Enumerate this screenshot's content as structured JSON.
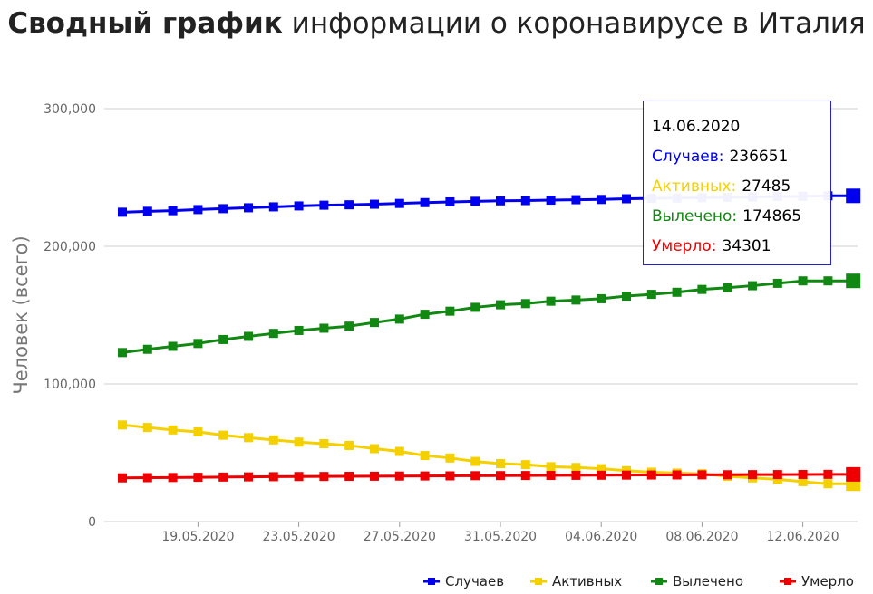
{
  "title": {
    "bold": "Сводный график",
    "rest": "информации о коронавирусе в Италия"
  },
  "chart_data": {
    "type": "line",
    "ylabel": "Человек (всего)",
    "ylim": [
      0,
      300000
    ],
    "yticks": [
      "0",
      "100,000",
      "200,000",
      "300,000"
    ],
    "ytick_values": [
      0,
      100000,
      200000,
      300000
    ],
    "x": [
      "16.05.2020",
      "17.05.2020",
      "18.05.2020",
      "19.05.2020",
      "20.05.2020",
      "21.05.2020",
      "22.05.2020",
      "23.05.2020",
      "24.05.2020",
      "25.05.2020",
      "26.05.2020",
      "27.05.2020",
      "28.05.2020",
      "29.05.2020",
      "30.05.2020",
      "31.05.2020",
      "01.06.2020",
      "02.06.2020",
      "03.06.2020",
      "04.06.2020",
      "05.06.2020",
      "06.06.2020",
      "07.06.2020",
      "08.06.2020",
      "09.06.2020",
      "10.06.2020",
      "11.06.2020",
      "12.06.2020",
      "13.06.2020",
      "14.06.2020"
    ],
    "xtick_labels": [
      "19.05.2020",
      "23.05.2020",
      "27.05.2020",
      "31.05.2020",
      "04.06.2020",
      "08.06.2020",
      "12.06.2020"
    ],
    "series": [
      {
        "name": "Случаев",
        "color": "#0000ee",
        "values": [
          224760,
          225435,
          225886,
          226699,
          227364,
          228006,
          228658,
          229327,
          229858,
          230158,
          230555,
          231139,
          231732,
          232248,
          232664,
          233019,
          233197,
          233515,
          233836,
          234013,
          234531,
          234801,
          234998,
          235278,
          235561,
          235763,
          236142,
          236305,
          236651,
          236651
        ]
      },
      {
        "name": "Активных",
        "color": "#f5d000",
        "values": [
          70187,
          68351,
          66553,
          65129,
          62752,
          60960,
          59322,
          57752,
          56594,
          55300,
          52942,
          50966,
          47986,
          46175,
          43691,
          42075,
          41367,
          39893,
          39297,
          38429,
          36976,
          35877,
          35262,
          34730,
          32872,
          31710,
          30637,
          28997,
          27485,
          27485
        ]
      },
      {
        "name": "Вылечено",
        "color": "#118811",
        "values": [
          122810,
          125176,
          127326,
          129401,
          132282,
          134560,
          136720,
          138840,
          140479,
          141981,
          144658,
          147101,
          150604,
          152844,
          155633,
          157507,
          158355,
          160092,
          160938,
          161895,
          163781,
          165078,
          166584,
          168646,
          169939,
          171338,
          173085,
          174865,
          174865,
          174865
        ]
      },
      {
        "name": "Умерло",
        "color": "#ee0000",
        "values": [
          31763,
          31908,
          32007,
          32169,
          32330,
          32486,
          32616,
          32735,
          32785,
          32877,
          32955,
          33072,
          33142,
          33229,
          33340,
          33415,
          33475,
          33530,
          33601,
          33689,
          33774,
          33846,
          33899,
          33964,
          34043,
          34114,
          34167,
          34223,
          34301,
          34301
        ]
      }
    ],
    "legend_position": "bottom-right",
    "grid": true,
    "tooltip": {
      "date": "14.06.2020",
      "rows": [
        {
          "label": "Случаев:",
          "value": "236651",
          "color": "#0000ee"
        },
        {
          "label": "Активных:",
          "value": "27485",
          "color": "#f5d000"
        },
        {
          "label": "Вылечено:",
          "value": "174865",
          "color": "#118811"
        },
        {
          "label": "Умерло:",
          "value": "34301",
          "color": "#ee0000"
        }
      ]
    }
  }
}
